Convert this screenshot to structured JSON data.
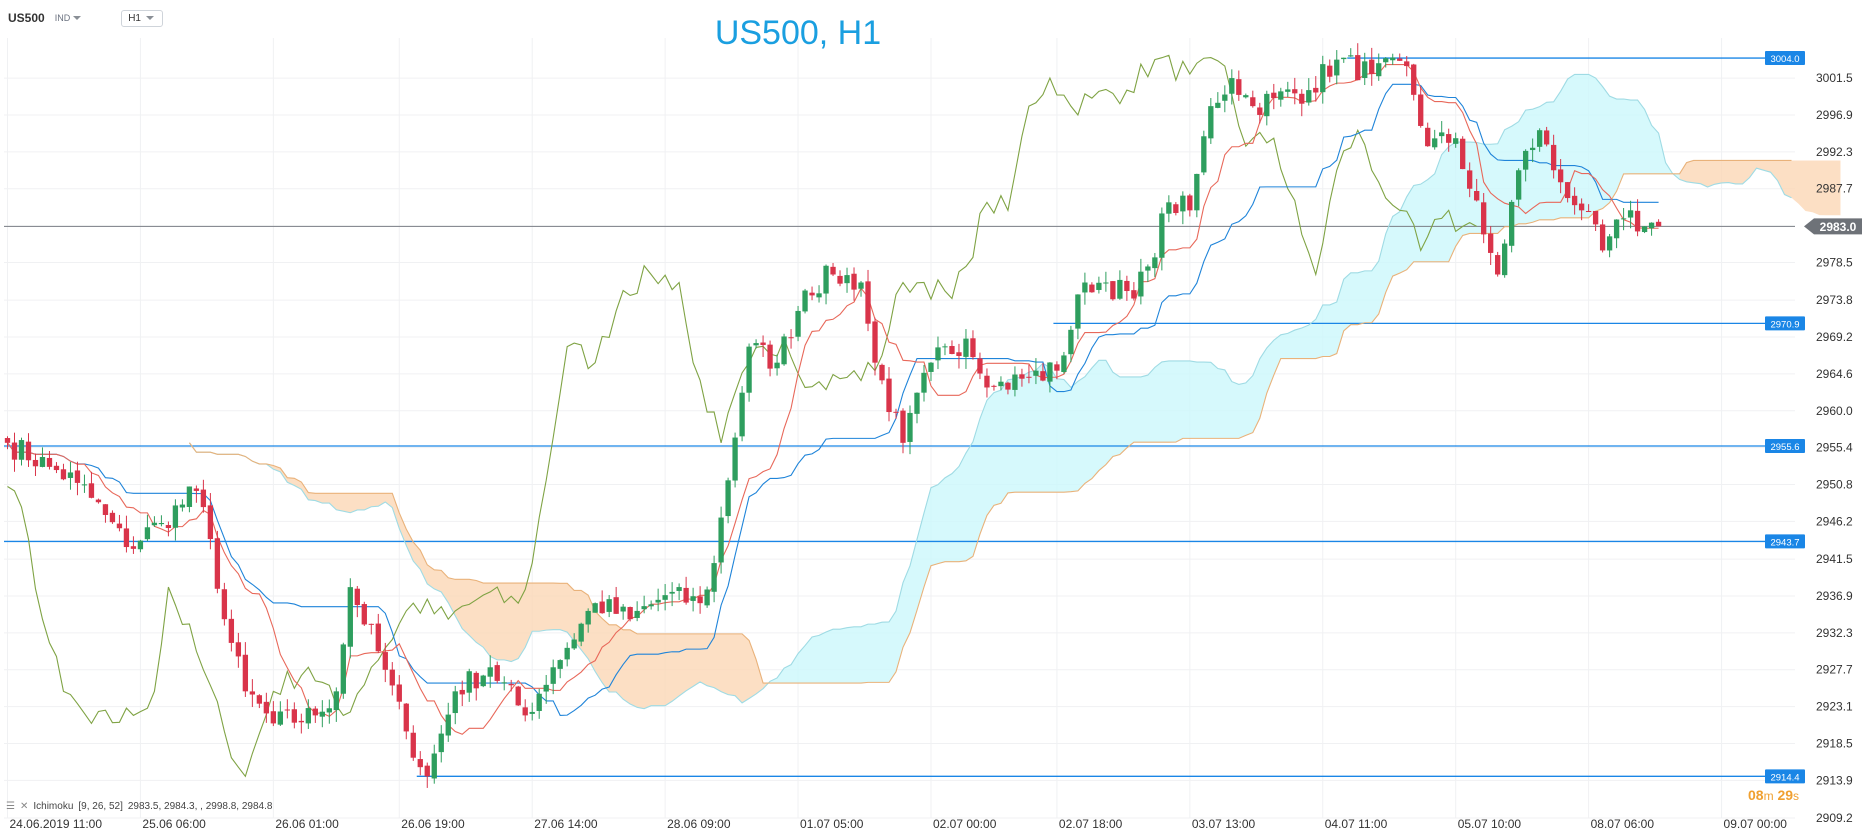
{
  "header": {
    "symbol": "US500",
    "market": "IND",
    "timeframe": "H1",
    "title": "US500, H1"
  },
  "indicator": {
    "label": "Ichimoku",
    "params": "[9, 26, 52]",
    "values": "2983.5,  2984.3,  ,  2998.8,  2984.8"
  },
  "countdown": {
    "minutes": "08",
    "minutes_unit": "m",
    "seconds": "29",
    "seconds_unit": "s"
  },
  "colors": {
    "bull": "#2e9e5e",
    "bear": "#d9344a",
    "tenkan": "#e8685a",
    "kijun": "#1f84d9",
    "chikou": "#7fa344",
    "cloud_bull_fill": "#ccf7fb",
    "cloud_bear_fill": "#fbd7b5",
    "level_line": "#1a86e6",
    "price_line": "#7a7e85"
  },
  "chart_data": {
    "type": "candlestick",
    "title": "US500, H1",
    "ylim": [
      2909.2,
      3006.5
    ],
    "yticks": [
      3001.5,
      2996.9,
      2992.3,
      2987.7,
      2983.0,
      2978.5,
      2973.8,
      2969.2,
      2964.6,
      2960.0,
      2955.4,
      2950.8,
      2946.2,
      2941.5,
      2936.9,
      2932.3,
      2927.7,
      2923.1,
      2918.5,
      2913.9,
      2909.2
    ],
    "xticks": [
      {
        "label": "24.06.2019  11:00",
        "bar": 0
      },
      {
        "label": "25.06  06:00",
        "bar": 19
      },
      {
        "label": "26.06  01:00",
        "bar": 38
      },
      {
        "label": "26.06  19:00",
        "bar": 56
      },
      {
        "label": "27.06  14:00",
        "bar": 75
      },
      {
        "label": "28.06  09:00",
        "bar": 94
      },
      {
        "label": "01.07  05:00",
        "bar": 113
      },
      {
        "label": "02.07  00:00",
        "bar": 132
      },
      {
        "label": "02.07  18:00",
        "bar": 150
      },
      {
        "label": "03.07  13:00",
        "bar": 169
      },
      {
        "label": "04.07  11:00",
        "bar": 188
      },
      {
        "label": "05.07  10:00",
        "bar": 207
      },
      {
        "label": "08.07  06:00",
        "bar": 226
      },
      {
        "label": "09.07  00:00",
        "bar": 245
      }
    ],
    "current_price": 2983.0,
    "levels": [
      {
        "value": 3004.0,
        "label": "3004.0",
        "from_bar": 192
      },
      {
        "value": 2970.9,
        "label": "2970.9",
        "from_bar": 150
      },
      {
        "value": 2955.6,
        "label": "2955.6",
        "from_bar": 0
      },
      {
        "value": 2943.7,
        "label": "2943.7",
        "from_bar": 0
      },
      {
        "value": 2914.4,
        "label": "2914.4",
        "from_bar": 59
      }
    ],
    "ichimoku": {
      "tenkan": 9,
      "kijun": 26,
      "senkou_b": 52,
      "last_values": [
        2983.5,
        2984.3,
        2998.8,
        2984.8
      ]
    },
    "path": [
      [
        0,
        2956
      ],
      [
        6,
        2953
      ],
      [
        10,
        2951
      ],
      [
        14,
        2947
      ],
      [
        17,
        2943
      ],
      [
        22,
        2946
      ],
      [
        27,
        2950
      ],
      [
        29,
        2944
      ],
      [
        31,
        2934
      ],
      [
        34,
        2925
      ],
      [
        38,
        2921
      ],
      [
        44,
        2922
      ],
      [
        47,
        2925
      ],
      [
        49,
        2938
      ],
      [
        53,
        2930
      ],
      [
        57,
        2920
      ],
      [
        60,
        2914.4
      ],
      [
        64,
        2925
      ],
      [
        69,
        2928
      ],
      [
        74,
        2922
      ],
      [
        78,
        2928
      ],
      [
        84,
        2936
      ],
      [
        89,
        2934
      ],
      [
        94,
        2937
      ],
      [
        99,
        2936
      ],
      [
        101,
        2941
      ],
      [
        106,
        2968
      ],
      [
        110,
        2966
      ],
      [
        114,
        2975
      ],
      [
        118,
        2977
      ],
      [
        122,
        2976
      ],
      [
        124,
        2966
      ],
      [
        128,
        2956
      ],
      [
        132,
        2966
      ],
      [
        137,
        2969
      ],
      [
        141,
        2963
      ],
      [
        145,
        2964
      ],
      [
        150,
        2965
      ],
      [
        154,
        2976
      ],
      [
        157,
        2976
      ],
      [
        161,
        2974
      ],
      [
        163,
        2978
      ],
      [
        166,
        2986
      ],
      [
        169,
        2985
      ],
      [
        172,
        2998
      ],
      [
        175,
        3001.5
      ],
      [
        178,
        2998
      ],
      [
        181,
        2999
      ],
      [
        186,
        3000
      ],
      [
        190,
        3003.8
      ],
      [
        195,
        3002
      ],
      [
        200,
        3003
      ],
      [
        203,
        2993
      ],
      [
        207,
        2994
      ],
      [
        211,
        2982
      ],
      [
        213,
        2977
      ],
      [
        216,
        2990
      ],
      [
        219,
        2995
      ],
      [
        221,
        2990
      ],
      [
        225,
        2985
      ],
      [
        228,
        2980
      ],
      [
        231,
        2984
      ],
      [
        234,
        2983
      ],
      [
        236,
        2983
      ]
    ]
  }
}
